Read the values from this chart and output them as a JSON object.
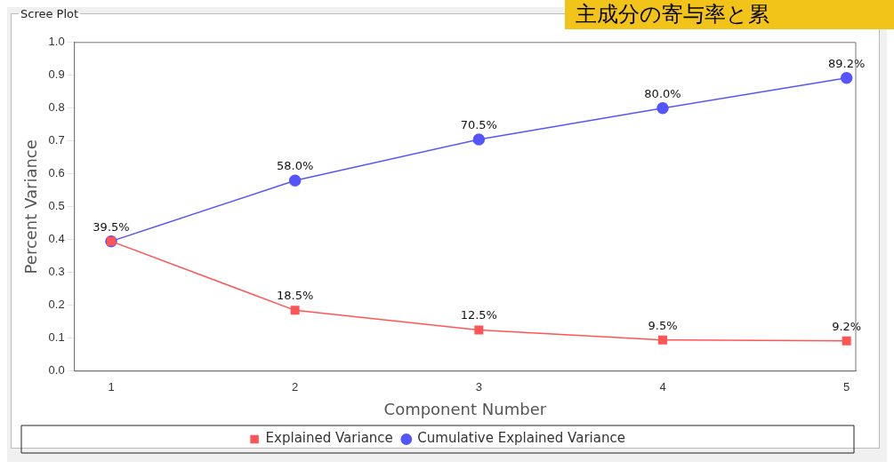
{
  "chart_data": {
    "type": "line",
    "title": "Scree Plot",
    "xlabel": "Component Number",
    "ylabel": "Percent Variance",
    "annotations": [
      "主成分の寄与率と累"
    ],
    "x": [
      1,
      2,
      3,
      4,
      5
    ],
    "xlim": [
      0.8,
      5.05
    ],
    "xticks": [
      1,
      2,
      3,
      4,
      5
    ],
    "ylim": [
      0,
      1
    ],
    "yticks": [
      {
        "value": 0,
        "label": "0.0"
      },
      {
        "value": 0.1,
        "label": "0.1"
      },
      {
        "value": 0.2,
        "label": "0.2"
      },
      {
        "value": 0.3,
        "label": "0.3"
      },
      {
        "value": 0.4,
        "label": "0.4"
      },
      {
        "value": 0.5,
        "label": "0.5"
      },
      {
        "value": 0.6,
        "label": "0.6"
      },
      {
        "value": 0.7,
        "label": "0.7"
      },
      {
        "value": 0.8,
        "label": "0.8"
      },
      {
        "value": 0.9,
        "label": "0.9"
      },
      {
        "value": 1,
        "label": "1.0"
      }
    ],
    "grid": false,
    "legend": "bottom",
    "line_style": "solid",
    "series": [
      {
        "name": "Explained Variance",
        "color": "#ff5555",
        "marker": "square",
        "values": [
          0.395,
          0.185,
          0.125,
          0.095,
          0.092
        ],
        "value_labels": [
          "39.5%",
          "18.5%",
          "12.5%",
          "9.5%",
          "9.2%"
        ]
      },
      {
        "name": "Cumulative Explained Variance",
        "color": "#5555ff",
        "marker": "circle",
        "values": [
          0.395,
          0.58,
          0.705,
          0.8,
          0.892
        ],
        "value_labels": [
          null,
          "58.0%",
          "70.5%",
          "80.0%",
          "89.2%"
        ]
      }
    ]
  }
}
